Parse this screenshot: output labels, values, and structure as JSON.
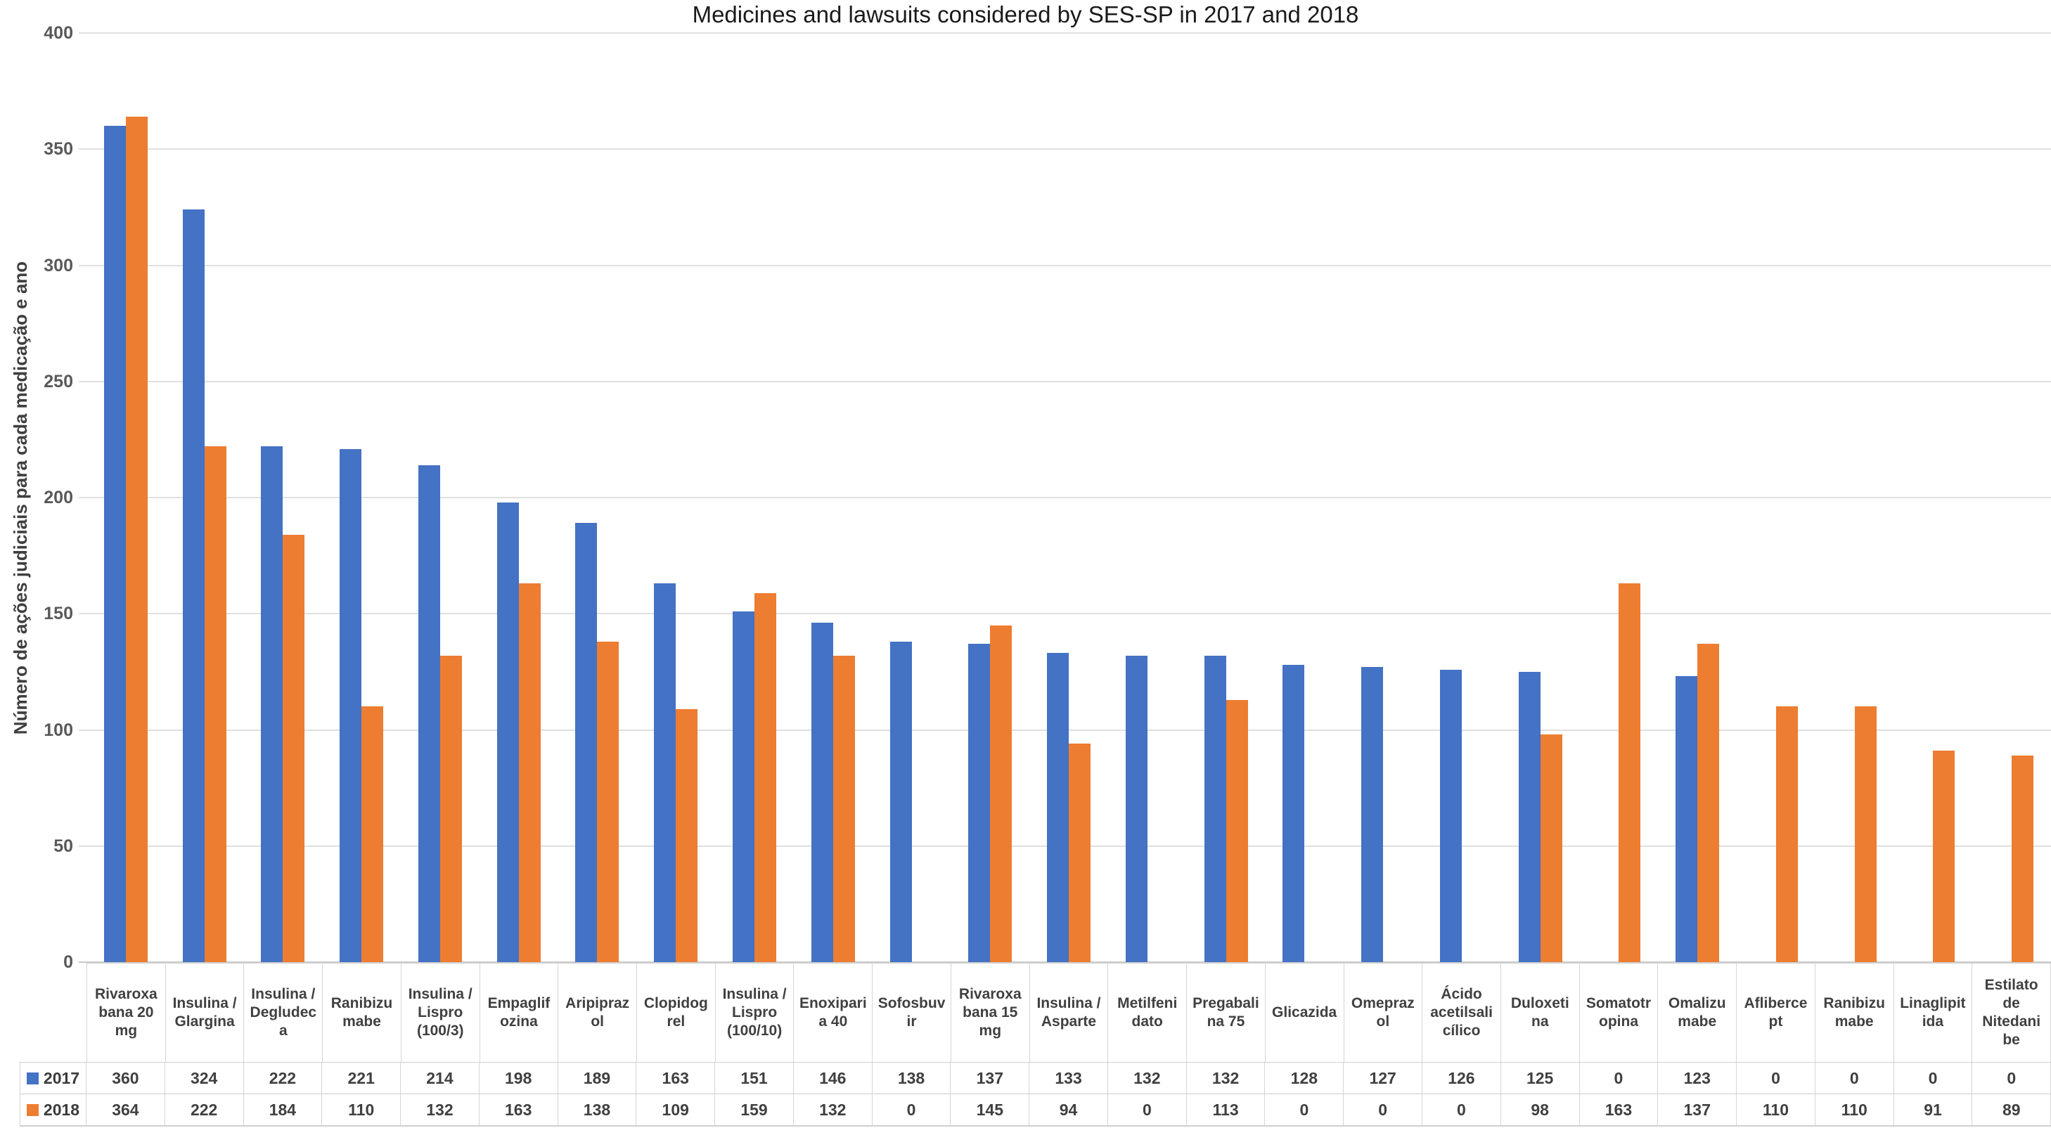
{
  "chart_data": {
    "type": "bar",
    "title": "Medicines and lawsuits considered by SES-SP in 2017 and 2018",
    "xlabel": "",
    "ylabel": "Número de ações judiciais para cada medicação e ano",
    "ylim": [
      0,
      400
    ],
    "yticks": [
      0,
      50,
      100,
      150,
      200,
      250,
      300,
      350,
      400
    ],
    "grid": true,
    "legend_position": "data-table-left",
    "data_table_shown": true,
    "categories": [
      "Rivaroxa\nbana 20\nmg",
      "Insulina /\nGlargina",
      "Insulina /\nDegludec\na",
      "Ranibizu\nmabe",
      "Insulina /\nLispro\n(100/3)",
      "Empaglif\nozina",
      "Aripipraz\nol",
      "Clopidog\nrel",
      "Insulina /\nLispro\n(100/10)",
      "Enoxipari\na 40",
      "Sofosbuv\nir",
      "Rivaroxa\nbana 15\nmg",
      "Insulina /\nAsparte",
      "Metilfeni\ndato",
      "Pregabali\nna 75",
      "Glicazida",
      "Omepraz\nol",
      "Ácido\nacetilsali\ncílico",
      "Duloxeti\nna",
      "Somatotr\nopina",
      "Omalizu\nmabe",
      "Afliberce\npt",
      "Ranibizu\nmabe",
      "Linaglipit\nida",
      "Estilato\nde\nNitedani\nbe"
    ],
    "series": [
      {
        "name": "2017",
        "color": "#4472C4",
        "values": [
          360,
          324,
          222,
          221,
          214,
          198,
          189,
          163,
          151,
          146,
          138,
          137,
          133,
          132,
          132,
          128,
          127,
          126,
          125,
          0,
          123,
          0,
          0,
          0,
          0
        ]
      },
      {
        "name": "2018",
        "color": "#ED7D31",
        "values": [
          364,
          222,
          184,
          110,
          132,
          163,
          138,
          109,
          159,
          132,
          0,
          145,
          94,
          0,
          113,
          0,
          0,
          0,
          98,
          163,
          137,
          110,
          110,
          91,
          89
        ]
      }
    ],
    "colors": {
      "series_2017": "#4472C4",
      "series_2018": "#ED7D31",
      "gridline": "#E0E0E0",
      "table_border": "#CFCFCF",
      "tick_text": "#595959",
      "label_text": "#404040",
      "title_text": "#1A1A1A"
    }
  }
}
